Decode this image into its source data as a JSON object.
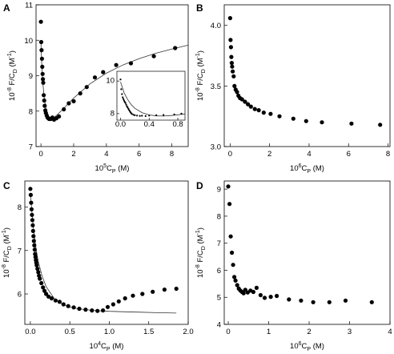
{
  "chart_data": [
    {
      "id": "A",
      "panel_label": "A",
      "type": "scatter",
      "xlabel": {
        "pre": "10",
        "sup": "5",
        "main": "C",
        "sub": "P",
        "post": " (M)"
      },
      "ylabel": {
        "pre": "10",
        "sup": "-8",
        "main": " F/C",
        "sub": "D",
        "post": " (M",
        "sup2": "-1",
        "end": ")"
      },
      "xlim": [
        -0.3,
        9
      ],
      "ylim": [
        7,
        11
      ],
      "xticks": [
        "0",
        "2",
        "4",
        "6",
        "8"
      ],
      "xtick_values": [
        0,
        2,
        4,
        6,
        8
      ],
      "yticks": [
        "7",
        "8",
        "9",
        "10",
        "11"
      ],
      "ytick_values": [
        7,
        8,
        9,
        10,
        11
      ],
      "points": [
        [
          0.0,
          10.52
        ],
        [
          0.02,
          9.95
        ],
        [
          0.04,
          9.72
        ],
        [
          0.06,
          9.48
        ],
        [
          0.08,
          9.25
        ],
        [
          0.1,
          9.05
        ],
        [
          0.12,
          8.9
        ],
        [
          0.14,
          8.8
        ],
        [
          0.17,
          8.45
        ],
        [
          0.2,
          8.3
        ],
        [
          0.23,
          8.15
        ],
        [
          0.27,
          8.02
        ],
        [
          0.3,
          7.95
        ],
        [
          0.35,
          7.88
        ],
        [
          0.4,
          7.82
        ],
        [
          0.45,
          7.8
        ],
        [
          0.5,
          7.78
        ],
        [
          0.6,
          7.78
        ],
        [
          0.7,
          7.82
        ],
        [
          0.8,
          7.76
        ],
        [
          0.95,
          7.8
        ],
        [
          1.1,
          7.85
        ],
        [
          1.4,
          8.05
        ],
        [
          1.7,
          8.22
        ],
        [
          2.0,
          8.28
        ],
        [
          2.4,
          8.5
        ],
        [
          2.8,
          8.68
        ],
        [
          3.3,
          8.95
        ],
        [
          3.8,
          9.1
        ],
        [
          4.6,
          9.3
        ],
        [
          5.5,
          9.35
        ],
        [
          6.9,
          9.55
        ],
        [
          8.2,
          9.78
        ]
      ],
      "fit_line": [
        [
          0.0,
          9.95
        ],
        [
          0.05,
          9.28
        ],
        [
          0.1,
          8.87
        ],
        [
          0.2,
          8.38
        ],
        [
          0.3,
          8.08
        ],
        [
          0.4,
          7.92
        ],
        [
          0.5,
          7.84
        ],
        [
          0.6,
          7.8
        ],
        [
          0.8,
          7.82
        ],
        [
          1.0,
          7.9
        ],
        [
          1.5,
          8.13
        ],
        [
          2.0,
          8.37
        ],
        [
          3.0,
          8.77
        ],
        [
          4.0,
          9.07
        ],
        [
          5.0,
          9.3
        ],
        [
          6.0,
          9.48
        ],
        [
          7.0,
          9.63
        ],
        [
          8.0,
          9.75
        ],
        [
          9.0,
          9.86
        ]
      ],
      "inset": {
        "xlim": [
          -0.05,
          0.9
        ],
        "ylim": [
          7.6,
          10.6
        ],
        "xticks": [
          "0.0",
          "0.4",
          "0.8"
        ],
        "xtick_values": [
          0.0,
          0.4,
          0.8
        ],
        "yticks": [
          "8",
          "10"
        ],
        "ytick_values": [
          8,
          10
        ],
        "points": [
          [
            0.0,
            10.1
          ],
          [
            0.01,
            9.5
          ],
          [
            0.02,
            9.2
          ],
          [
            0.03,
            9.0
          ],
          [
            0.04,
            8.9
          ],
          [
            0.05,
            8.8
          ],
          [
            0.06,
            8.72
          ],
          [
            0.07,
            8.65
          ],
          [
            0.08,
            8.55
          ],
          [
            0.09,
            8.45
          ],
          [
            0.1,
            8.38
          ],
          [
            0.11,
            8.3
          ],
          [
            0.12,
            8.22
          ],
          [
            0.13,
            8.15
          ],
          [
            0.14,
            8.08
          ],
          [
            0.15,
            8.02
          ],
          [
            0.16,
            7.98
          ],
          [
            0.18,
            7.93
          ],
          [
            0.2,
            7.9
          ],
          [
            0.23,
            7.88
          ],
          [
            0.27,
            7.86
          ],
          [
            0.3,
            7.87
          ],
          [
            0.35,
            7.85
          ],
          [
            0.4,
            7.88
          ],
          [
            0.5,
            7.9
          ],
          [
            0.6,
            7.92
          ],
          [
            0.75,
            7.95
          ],
          [
            0.85,
            8.0
          ]
        ],
        "fit_line": [
          [
            0.0,
            9.95
          ],
          [
            0.05,
            9.28
          ],
          [
            0.1,
            8.87
          ],
          [
            0.15,
            8.55
          ],
          [
            0.2,
            8.33
          ],
          [
            0.3,
            8.06
          ],
          [
            0.4,
            7.92
          ],
          [
            0.5,
            7.86
          ],
          [
            0.6,
            7.85
          ],
          [
            0.7,
            7.88
          ],
          [
            0.8,
            7.93
          ],
          [
            0.9,
            7.98
          ]
        ]
      }
    },
    {
      "id": "B",
      "panel_label": "B",
      "type": "scatter",
      "xlabel": {
        "pre": "10",
        "sup": "6",
        "main": "C",
        "sub": "P",
        "post": " (M)"
      },
      "ylabel": {
        "pre": "10",
        "sup": "-8",
        "main": " F/C",
        "sub": "D",
        "post": " (M",
        "sup2": "-1",
        "end": ")"
      },
      "xlim": [
        -0.3,
        8.1
      ],
      "ylim": [
        3.0,
        4.17
      ],
      "xticks": [
        "0",
        "2",
        "4",
        "6",
        "8"
      ],
      "xtick_values": [
        0,
        2,
        4,
        6,
        8
      ],
      "yticks": [
        "3.0",
        "3.5",
        "4.0"
      ],
      "ytick_values": [
        3.0,
        3.5,
        4.0
      ],
      "points": [
        [
          0.0,
          4.06
        ],
        [
          0.02,
          3.88
        ],
        [
          0.04,
          3.82
        ],
        [
          0.06,
          3.74
        ],
        [
          0.08,
          3.69
        ],
        [
          0.1,
          3.66
        ],
        [
          0.13,
          3.62
        ],
        [
          0.18,
          3.58
        ],
        [
          0.22,
          3.5
        ],
        [
          0.28,
          3.47
        ],
        [
          0.35,
          3.45
        ],
        [
          0.42,
          3.42
        ],
        [
          0.5,
          3.4
        ],
        [
          0.6,
          3.39
        ],
        [
          0.75,
          3.37
        ],
        [
          0.9,
          3.35
        ],
        [
          1.05,
          3.33
        ],
        [
          1.25,
          3.31
        ],
        [
          1.45,
          3.3
        ],
        [
          1.7,
          3.28
        ],
        [
          2.05,
          3.27
        ],
        [
          2.5,
          3.25
        ],
        [
          3.2,
          3.23
        ],
        [
          3.85,
          3.21
        ],
        [
          4.65,
          3.2
        ],
        [
          6.15,
          3.19
        ],
        [
          7.6,
          3.18
        ]
      ]
    },
    {
      "id": "C",
      "panel_label": "C",
      "type": "scatter",
      "xlabel": {
        "pre": "10",
        "sup": "4",
        "main": "C",
        "sub": "P",
        "post": " (M)"
      },
      "ylabel": {
        "pre": "10",
        "sup": "-8",
        "main": " F/C",
        "sub": "D",
        "post": " (M",
        "sup2": "-1",
        "end": ")"
      },
      "xlim": [
        -0.07,
        2.0
      ],
      "ylim": [
        5.3,
        8.6
      ],
      "xticks": [
        "0.0",
        "0.5",
        "1.0",
        "1.5",
        "2.0"
      ],
      "xtick_values": [
        0.0,
        0.5,
        1.0,
        1.5,
        2.0
      ],
      "yticks": [
        "6",
        "7",
        "8"
      ],
      "ytick_values": [
        6,
        7,
        8
      ],
      "points": [
        [
          0.0,
          8.42
        ],
        [
          0.005,
          8.28
        ],
        [
          0.01,
          8.1
        ],
        [
          0.015,
          7.95
        ],
        [
          0.02,
          7.82
        ],
        [
          0.025,
          7.7
        ],
        [
          0.03,
          7.58
        ],
        [
          0.035,
          7.45
        ],
        [
          0.04,
          7.33
        ],
        [
          0.045,
          7.22
        ],
        [
          0.05,
          7.12
        ],
        [
          0.055,
          7.02
        ],
        [
          0.06,
          6.92
        ],
        [
          0.065,
          6.85
        ],
        [
          0.07,
          6.78
        ],
        [
          0.075,
          6.72
        ],
        [
          0.08,
          6.66
        ],
        [
          0.09,
          6.58
        ],
        [
          0.1,
          6.5
        ],
        [
          0.11,
          6.42
        ],
        [
          0.12,
          6.35
        ],
        [
          0.14,
          6.25
        ],
        [
          0.16,
          6.15
        ],
        [
          0.18,
          6.07
        ],
        [
          0.2,
          6.0
        ],
        [
          0.23,
          5.94
        ],
        [
          0.27,
          5.9
        ],
        [
          0.32,
          5.85
        ],
        [
          0.37,
          5.82
        ],
        [
          0.42,
          5.76
        ],
        [
          0.48,
          5.72
        ],
        [
          0.55,
          5.69
        ],
        [
          0.62,
          5.66
        ],
        [
          0.7,
          5.64
        ],
        [
          0.78,
          5.62
        ],
        [
          0.85,
          5.61
        ],
        [
          0.92,
          5.62
        ],
        [
          0.98,
          5.7
        ],
        [
          1.05,
          5.76
        ],
        [
          1.12,
          5.83
        ],
        [
          1.2,
          5.9
        ],
        [
          1.3,
          5.96
        ],
        [
          1.42,
          6.0
        ],
        [
          1.55,
          6.05
        ],
        [
          1.7,
          6.1
        ],
        [
          1.85,
          6.12
        ]
      ],
      "fit_line": [
        [
          0.0,
          8.3
        ],
        [
          0.02,
          7.88
        ],
        [
          0.04,
          7.5
        ],
        [
          0.06,
          7.2
        ],
        [
          0.08,
          6.95
        ],
        [
          0.1,
          6.75
        ],
        [
          0.15,
          6.4
        ],
        [
          0.2,
          6.17
        ],
        [
          0.3,
          5.9
        ],
        [
          0.4,
          5.77
        ],
        [
          0.5,
          5.7
        ],
        [
          0.6,
          5.66
        ],
        [
          0.8,
          5.62
        ],
        [
          1.0,
          5.6
        ],
        [
          1.2,
          5.59
        ],
        [
          1.4,
          5.58
        ],
        [
          1.6,
          5.57
        ],
        [
          1.85,
          5.56
        ]
      ]
    },
    {
      "id": "D",
      "panel_label": "D",
      "type": "scatter",
      "xlabel": {
        "pre": "10",
        "sup": "6",
        "main": "C",
        "sub": "P",
        "post": " (M)"
      },
      "ylabel": {
        "pre": "10",
        "sup": "-8",
        "main": " F/C",
        "sub": "D",
        "post": " (M",
        "sup2": "-1",
        "end": ")"
      },
      "xlim": [
        -0.1,
        4.0
      ],
      "ylim": [
        4.0,
        9.3
      ],
      "xticks": [
        "0",
        "1",
        "2",
        "3",
        "4"
      ],
      "xtick_values": [
        0,
        1,
        2,
        3,
        4
      ],
      "yticks": [
        "4",
        "5",
        "6",
        "7",
        "8",
        "9"
      ],
      "ytick_values": [
        4,
        5,
        6,
        7,
        8,
        9
      ],
      "points": [
        [
          0.0,
          9.1
        ],
        [
          0.03,
          8.45
        ],
        [
          0.06,
          7.25
        ],
        [
          0.09,
          6.65
        ],
        [
          0.12,
          6.2
        ],
        [
          0.15,
          5.75
        ],
        [
          0.18,
          5.62
        ],
        [
          0.22,
          5.45
        ],
        [
          0.26,
          5.32
        ],
        [
          0.3,
          5.25
        ],
        [
          0.34,
          5.2
        ],
        [
          0.38,
          5.15
        ],
        [
          0.42,
          5.28
        ],
        [
          0.48,
          5.18
        ],
        [
          0.55,
          5.25
        ],
        [
          0.62,
          5.2
        ],
        [
          0.7,
          5.35
        ],
        [
          0.8,
          5.08
        ],
        [
          0.9,
          4.98
        ],
        [
          1.05,
          5.02
        ],
        [
          1.2,
          5.05
        ],
        [
          1.5,
          4.92
        ],
        [
          1.8,
          4.88
        ],
        [
          2.1,
          4.82
        ],
        [
          2.5,
          4.82
        ],
        [
          2.9,
          4.88
        ],
        [
          3.55,
          4.82
        ]
      ]
    }
  ]
}
